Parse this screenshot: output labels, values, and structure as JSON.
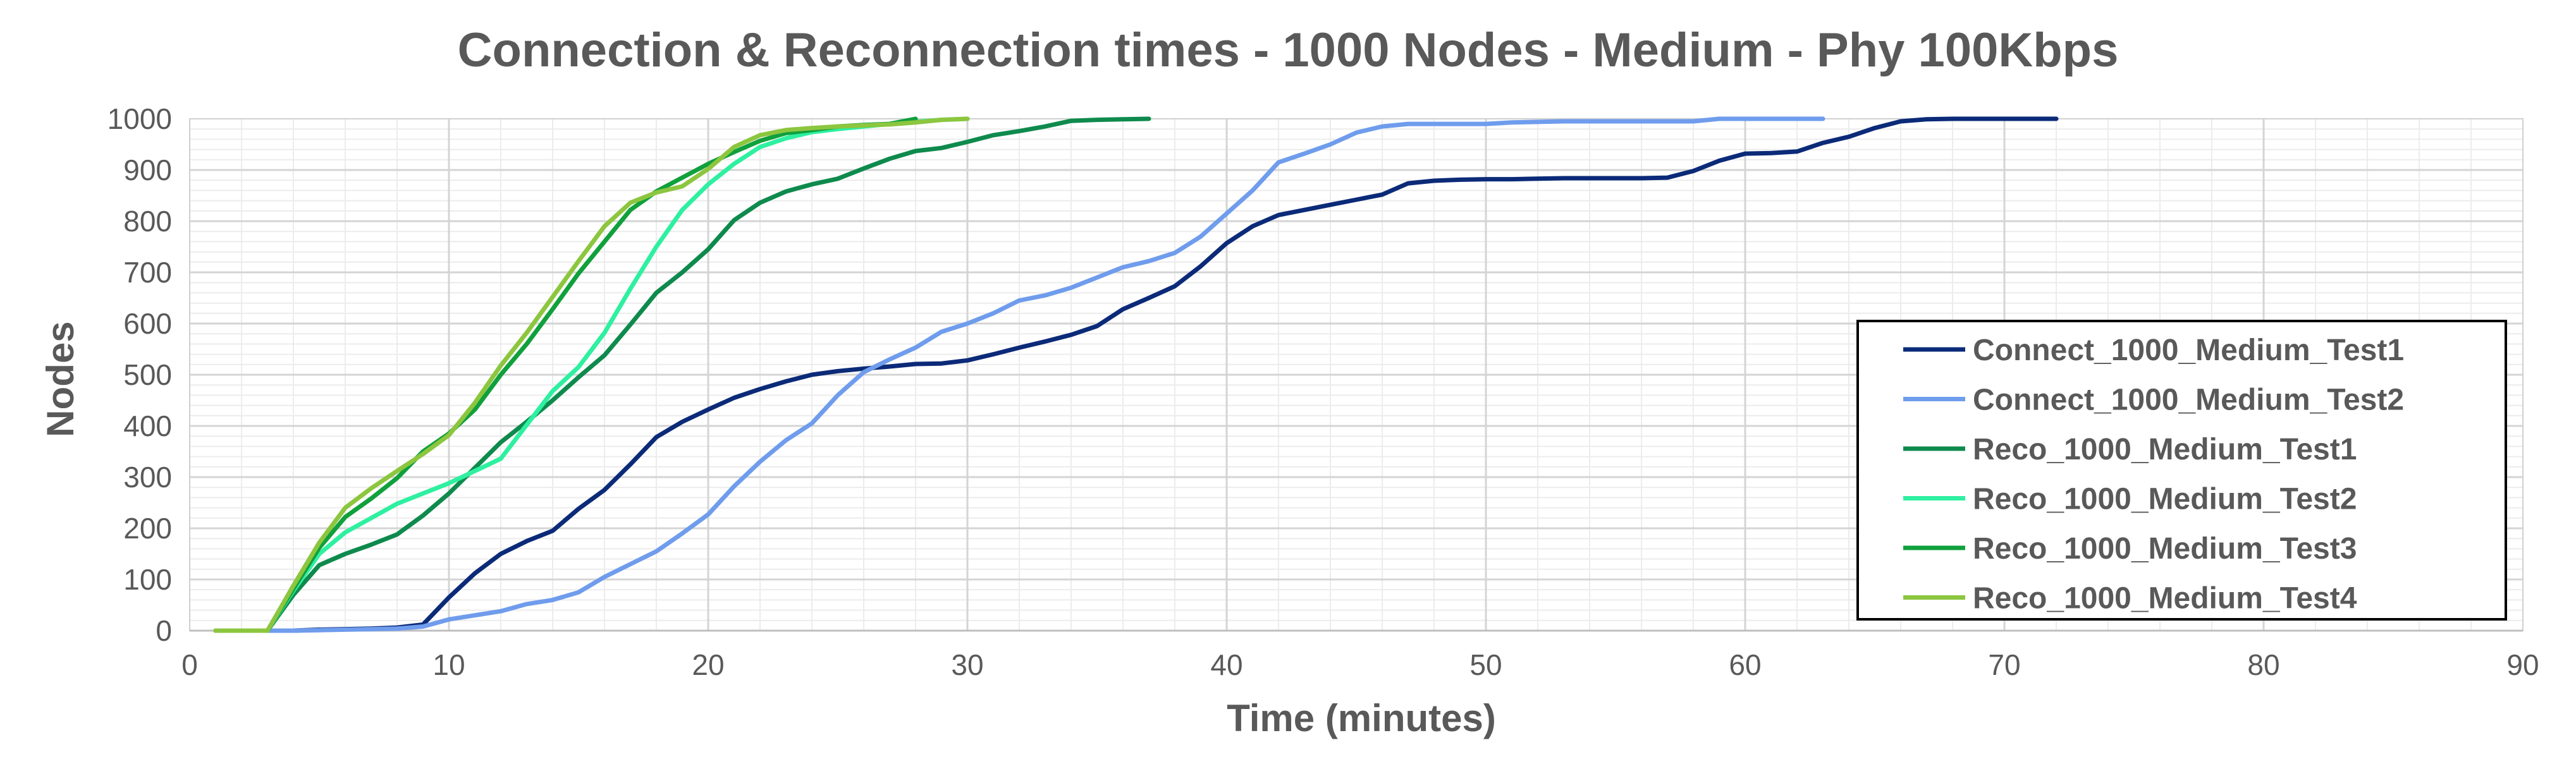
{
  "chart_data": {
    "type": "line",
    "title": "Connection & Reconnection times - 1000 Nodes - Medium - Phy 100Kbps",
    "xlabel": "Time (minutes)",
    "ylabel": "Nodes",
    "xlim": [
      0,
      90
    ],
    "ylim": [
      0,
      1000
    ],
    "x_ticks": [
      "0",
      "10",
      "20",
      "30",
      "40",
      "50",
      "60",
      "70",
      "80",
      "90"
    ],
    "y_ticks": [
      "0",
      "100",
      "200",
      "300",
      "400",
      "500",
      "600",
      "700",
      "800",
      "900",
      "1000"
    ],
    "grid": true,
    "legend_position": "bottom-right",
    "series": [
      {
        "name": "Connect_1000_Medium_Test1",
        "color": "#0b2a78",
        "x": [
          1,
          2,
          3,
          4,
          5,
          6,
          7,
          8,
          9,
          10,
          11,
          12,
          13,
          14,
          15,
          16,
          17,
          18,
          19,
          20,
          21,
          22,
          23,
          24,
          25,
          26,
          27,
          28,
          29,
          30,
          31,
          32,
          33,
          34,
          35,
          36,
          37,
          38,
          39,
          40,
          41,
          42,
          43,
          44,
          45,
          46,
          47,
          48,
          49,
          50,
          51,
          52,
          53,
          54,
          55,
          56,
          57,
          58,
          59,
          60,
          61,
          62,
          63,
          64,
          65,
          66,
          67,
          68,
          69,
          70,
          71,
          72
        ],
        "y": [
          0,
          0,
          0,
          0,
          2,
          3,
          4,
          6,
          12,
          65,
          112,
          150,
          175,
          195,
          238,
          275,
          325,
          378,
          408,
          432,
          455,
          472,
          487,
          500,
          507,
          512,
          516,
          521,
          522,
          528,
          540,
          553,
          565,
          578,
          595,
          628,
          650,
          673,
          712,
          757,
          790,
          812,
          822,
          832,
          842,
          852,
          874,
          879,
          881,
          882,
          882,
          883,
          884,
          884,
          884,
          884,
          885,
          898,
          918,
          932,
          933,
          936,
          953,
          965,
          982,
          995,
          999,
          1000,
          1000,
          1000,
          1000,
          1000
        ]
      },
      {
        "name": "Connect_1000_Medium_Test2",
        "color": "#6f9cec",
        "x": [
          1,
          2,
          3,
          4,
          5,
          6,
          7,
          8,
          9,
          10,
          11,
          12,
          13,
          14,
          15,
          16,
          17,
          18,
          19,
          20,
          21,
          22,
          23,
          24,
          25,
          26,
          27,
          28,
          29,
          30,
          31,
          32,
          33,
          34,
          35,
          36,
          37,
          38,
          39,
          40,
          41,
          42,
          43,
          44,
          45,
          46,
          47,
          48,
          49,
          50,
          51,
          52,
          53,
          54,
          55,
          56,
          57,
          58,
          59,
          60,
          61,
          62,
          63
        ],
        "y": [
          0,
          0,
          0,
          0,
          1,
          2,
          3,
          4,
          8,
          22,
          30,
          38,
          52,
          60,
          75,
          105,
          130,
          155,
          190,
          227,
          282,
          330,
          372,
          405,
          460,
          505,
          530,
          553,
          584,
          600,
          620,
          645,
          655,
          670,
          690,
          710,
          722,
          738,
          770,
          815,
          860,
          915,
          932,
          950,
          973,
          985,
          990,
          990,
          990,
          990,
          993,
          994,
          995,
          995,
          995,
          995,
          995,
          995,
          1000,
          1000,
          1000,
          1000,
          1000
        ]
      },
      {
        "name": "Reco_1000_Medium_Test1",
        "color": "#0e8a4d",
        "x": [
          1,
          2,
          3,
          4,
          5,
          6,
          7,
          8,
          9,
          10,
          11,
          12,
          13,
          14,
          15,
          16,
          17,
          18,
          19,
          20,
          21,
          22,
          23,
          24,
          25,
          26,
          27,
          28,
          29,
          30,
          31,
          32,
          33,
          34,
          35,
          36,
          37
        ],
        "y": [
          0,
          0,
          0,
          70,
          128,
          150,
          168,
          188,
          225,
          268,
          318,
          368,
          408,
          450,
          495,
          538,
          598,
          660,
          700,
          745,
          802,
          836,
          858,
          872,
          883,
          903,
          922,
          937,
          943,
          955,
          968,
          976,
          985,
          996,
          998,
          999,
          1000
        ]
      },
      {
        "name": "Reco_1000_Medium_Test2",
        "color": "#2ef0a0",
        "x": [
          1,
          2,
          3,
          4,
          5,
          6,
          7,
          8,
          9,
          10,
          11,
          12,
          13,
          14,
          15,
          16,
          17,
          18,
          19,
          20,
          21,
          22,
          23,
          24,
          25,
          26,
          27,
          28,
          29,
          30
        ],
        "y": [
          0,
          0,
          0,
          78,
          150,
          192,
          220,
          248,
          268,
          288,
          312,
          336,
          402,
          468,
          515,
          582,
          668,
          750,
          822,
          872,
          912,
          945,
          962,
          974,
          980,
          985,
          990,
          994,
          998,
          1000
        ]
      },
      {
        "name": "Reco_1000_Medium_Test3",
        "color": "#10a03c",
        "x": [
          1,
          2,
          3,
          4,
          5,
          6,
          7,
          8,
          9,
          10,
          11,
          12,
          13,
          14,
          15,
          16,
          17,
          18,
          19,
          20,
          21,
          22,
          23,
          24,
          25,
          26,
          27,
          28
        ],
        "y": [
          0,
          0,
          0,
          82,
          162,
          222,
          258,
          298,
          350,
          385,
          432,
          500,
          560,
          628,
          698,
          760,
          822,
          858,
          885,
          912,
          935,
          957,
          972,
          978,
          985,
          988,
          990,
          1000
        ]
      },
      {
        "name": "Reco_1000_Medium_Test4",
        "color": "#8cc63f",
        "x": [
          1,
          2,
          3,
          4,
          5,
          6,
          7,
          8,
          9,
          10,
          11,
          12,
          13,
          14,
          15,
          16,
          17,
          18,
          19,
          20,
          21,
          22,
          23,
          24,
          25,
          26,
          27,
          28,
          29,
          30
        ],
        "y": [
          0,
          0,
          0,
          88,
          172,
          240,
          278,
          312,
          345,
          382,
          445,
          518,
          582,
          652,
          722,
          790,
          836,
          856,
          868,
          902,
          945,
          968,
          978,
          982,
          985,
          987,
          989,
          993,
          998,
          1000
        ]
      }
    ]
  }
}
